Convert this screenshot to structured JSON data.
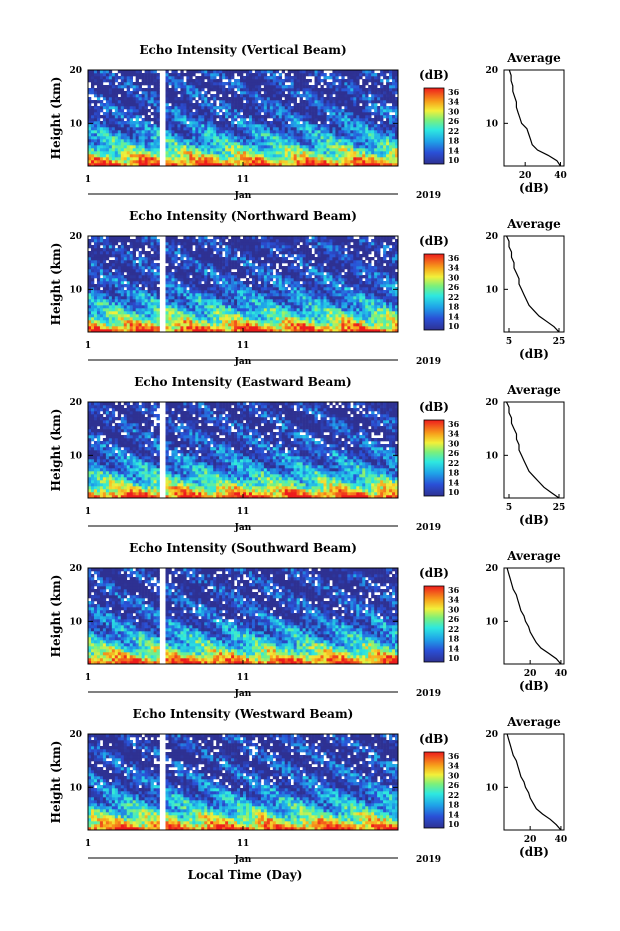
{
  "colorbar": {
    "unit": "(dB)",
    "ticks": [
      "36",
      "34",
      "30",
      "26",
      "22",
      "18",
      "14",
      "10"
    ]
  },
  "colors": {
    "low": "#2e3192",
    "high": "#ee1c1c",
    "gap": "#ffffff"
  },
  "chart_data": [
    {
      "type": "heatmap",
      "title": "Echo Intensity (Vertical Beam)",
      "ylabel": "Height (km)",
      "yticks": [
        "20",
        "10"
      ],
      "xticks": [
        "1",
        "11"
      ],
      "month": "Jan",
      "year": "2019",
      "ylim": [
        2,
        20
      ],
      "vmin": 10,
      "vmax": 38,
      "profile": {
        "title": "Average",
        "xlabel": "(dB)",
        "xticks": [
          "20",
          "40"
        ],
        "xlim": [
          8,
          42
        ],
        "h": [
          2,
          3,
          4,
          5,
          6,
          7,
          8,
          9,
          10,
          11,
          12,
          13,
          14,
          15,
          16,
          17,
          18,
          19,
          20
        ],
        "v": [
          40,
          38,
          33,
          27,
          24,
          23,
          22,
          21,
          18,
          17,
          16,
          15,
          15,
          14,
          13,
          13,
          12,
          12,
          11
        ]
      }
    },
    {
      "type": "heatmap",
      "title": "Echo Intensity (Northward Beam)",
      "ylabel": "Height (km)",
      "yticks": [
        "20",
        "10"
      ],
      "xticks": [
        "1",
        "11"
      ],
      "month": "Jan",
      "year": "2019",
      "ylim": [
        2,
        20
      ],
      "vmin": 10,
      "vmax": 38,
      "profile": {
        "title": "Average",
        "xlabel": "(dB)",
        "xticks": [
          "5",
          "25"
        ],
        "xlim": [
          3,
          27
        ],
        "h": [
          2,
          3,
          4,
          5,
          6,
          7,
          8,
          9,
          10,
          11,
          12,
          13,
          14,
          15,
          16,
          17,
          18,
          19,
          20
        ],
        "v": [
          25,
          23,
          20,
          17,
          15,
          13,
          12,
          11,
          10,
          9,
          9,
          8,
          7,
          7,
          6,
          6,
          5,
          5,
          4
        ]
      }
    },
    {
      "type": "heatmap",
      "title": "Echo Intensity (Eastward Beam)",
      "ylabel": "Height (km)",
      "yticks": [
        "20",
        "10"
      ],
      "xticks": [
        "1",
        "11"
      ],
      "month": "Jan",
      "year": "2019",
      "ylim": [
        2,
        20
      ],
      "vmin": 10,
      "vmax": 38,
      "profile": {
        "title": "Average",
        "xlabel": "(dB)",
        "xticks": [
          "5",
          "25"
        ],
        "xlim": [
          3,
          27
        ],
        "h": [
          2,
          3,
          4,
          5,
          6,
          7,
          8,
          9,
          10,
          11,
          12,
          13,
          14,
          15,
          16,
          17,
          18,
          19,
          20
        ],
        "v": [
          25,
          22,
          19,
          17,
          15,
          13,
          12,
          11,
          10,
          9,
          9,
          8,
          8,
          7,
          6,
          6,
          5,
          5,
          4
        ]
      }
    },
    {
      "type": "heatmap",
      "title": "Echo Intensity (Southward Beam)",
      "ylabel": "Height (km)",
      "yticks": [
        "20",
        "10"
      ],
      "xticks": [
        "1",
        "11"
      ],
      "month": "Jan",
      "year": "2019",
      "ylim": [
        2,
        20
      ],
      "vmin": 10,
      "vmax": 38,
      "profile": {
        "title": "Average",
        "xlabel": "(dB)",
        "xticks": [
          "20",
          "40"
        ],
        "xlim": [
          3,
          42
        ],
        "h": [
          2,
          3,
          4,
          5,
          6,
          7,
          8,
          9,
          10,
          11,
          12,
          13,
          14,
          15,
          16,
          17,
          18,
          19,
          20
        ],
        "v": [
          40,
          37,
          32,
          27,
          24,
          22,
          20,
          19,
          17,
          16,
          14,
          13,
          12,
          11,
          9,
          8,
          7,
          6,
          5
        ]
      }
    },
    {
      "type": "heatmap",
      "title": "Echo Intensity (Westward Beam)",
      "ylabel": "Height (km)",
      "yticks": [
        "20",
        "10"
      ],
      "xticks": [
        "1",
        "11"
      ],
      "month": "Jan",
      "year": "2019",
      "ylim": [
        2,
        20
      ],
      "vmin": 10,
      "vmax": 38,
      "profile": {
        "title": "Average",
        "xlabel": "(dB)",
        "xticks": [
          "20",
          "40"
        ],
        "xlim": [
          3,
          42
        ],
        "h": [
          2,
          3,
          4,
          5,
          6,
          7,
          8,
          9,
          10,
          11,
          12,
          13,
          14,
          15,
          16,
          17,
          18,
          19,
          20
        ],
        "v": [
          40,
          37,
          33,
          28,
          24,
          22,
          20,
          19,
          17,
          16,
          14,
          13,
          12,
          11,
          9,
          8,
          7,
          6,
          5
        ]
      }
    }
  ],
  "xaxis_label": "Local Time (Day)"
}
